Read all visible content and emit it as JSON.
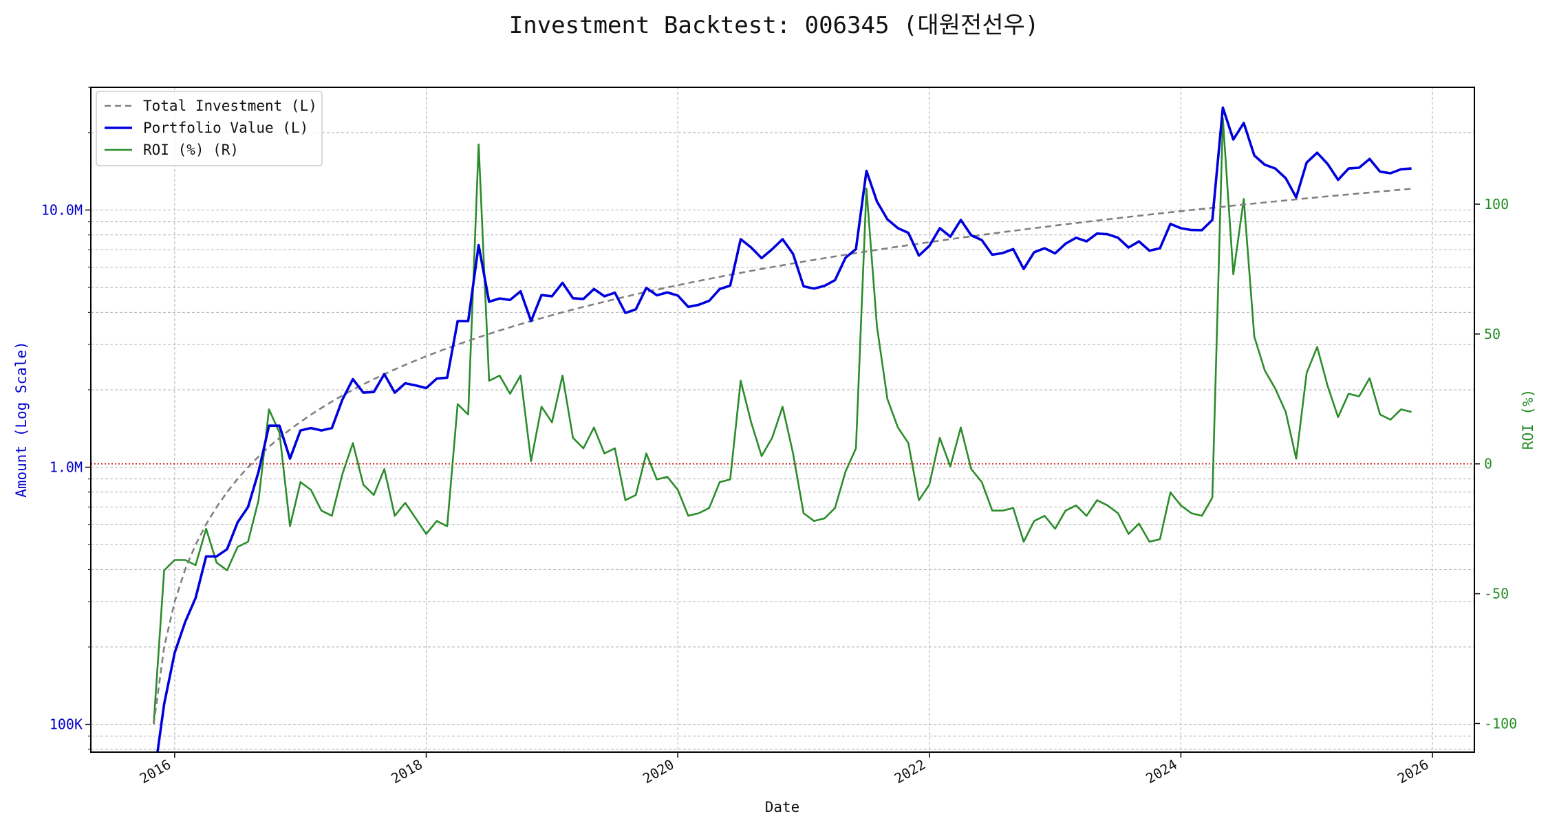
{
  "colors": {
    "total_investment": "#808080",
    "portfolio_value": "#0000dd",
    "roi": "#2a8c2a",
    "zero_line": "#cc0000",
    "left_axis": "#0000cc",
    "right_axis": "#228b22",
    "grid": "#b0b0b0"
  },
  "chart_data": {
    "type": "line",
    "title": "Investment Backtest: 006345 (대원전선우)",
    "xlabel": "Date",
    "ylabel_left": "Amount (Log Scale)",
    "ylabel_right": "ROI (%)",
    "left_scale": "log",
    "left_ylim": [
      78000,
      30000000
    ],
    "right_ylim": [
      -111,
      145
    ],
    "xlim": [
      "2015-05-01",
      "2026-05-01"
    ],
    "x_ticks": [
      "2016",
      "2018",
      "2020",
      "2022",
      "2024",
      "2026"
    ],
    "left_ticks": [
      "100K",
      "1.0M",
      "10.0M"
    ],
    "right_ticks": [
      "-100",
      "-50",
      "0",
      "50",
      "100"
    ],
    "grid": true,
    "legend_position": "top-left",
    "reference_line": {
      "axis": "right",
      "value": 0,
      "style": "dotted"
    },
    "legend": [
      {
        "label": "Total Investment (L)",
        "style": "dashed",
        "key": "total_investment"
      },
      {
        "label": "Portfolio Value (L)",
        "style": "solid",
        "key": "portfolio_value"
      },
      {
        "label": "ROI (%) (R)",
        "style": "solid",
        "key": "roi"
      }
    ],
    "x_start": "2015-11",
    "series": [
      {
        "name": "Total Investment (L)",
        "axis": "left",
        "values": [
          100000,
          200000,
          300000,
          400000,
          500000,
          600000,
          700000,
          800000,
          900000,
          1000000,
          1100000,
          1200000,
          1300000,
          1400000,
          1500000,
          1600000,
          1700000,
          1800000,
          1900000,
          2000000,
          2100000,
          2200000,
          2300000,
          2400000,
          2500000,
          2600000,
          2700000,
          2800000,
          2900000,
          3000000,
          3100000,
          3200000,
          3300000,
          3400000,
          3500000,
          3600000,
          3700000,
          3800000,
          3900000,
          4000000,
          4100000,
          4200000,
          4300000,
          4400000,
          4500000,
          4600000,
          4700000,
          4800000,
          4900000,
          5000000,
          5100000,
          5200000,
          5300000,
          5400000,
          5500000,
          5600000,
          5700000,
          5800000,
          5900000,
          6000000,
          6100000,
          6200000,
          6300000,
          6400000,
          6500000,
          6600000,
          6700000,
          6800000,
          6900000,
          7000000,
          7100000,
          7200000,
          7300000,
          7400000,
          7500000,
          7600000,
          7700000,
          7800000,
          7900000,
          8000000,
          8100000,
          8200000,
          8300000,
          8400000,
          8500000,
          8600000,
          8700000,
          8800000,
          8900000,
          9000000,
          9100000,
          9200000,
          9300000,
          9400000,
          9500000,
          9600000,
          9700000,
          9800000,
          9900000,
          10000000,
          10100000,
          10200000,
          10300000,
          10400000,
          10500000,
          10600000,
          10700000,
          10800000,
          10900000,
          11000000,
          11100000,
          11200000,
          11300000,
          11400000,
          11500000,
          11600000,
          11700000,
          11800000,
          11900000,
          12000000,
          12100000
        ]
      },
      {
        "name": "Portfolio Value (L)",
        "axis": "left",
        "values": [
          0,
          120000,
          190000,
          250000,
          310000,
          450000,
          450000,
          480000,
          610000,
          700000,
          960000,
          1450000,
          1450000,
          1080000,
          1390000,
          1420000,
          1390000,
          1420000,
          1830000,
          2200000,
          1950000,
          1960000,
          2300000,
          1950000,
          2120000,
          2080000,
          2030000,
          2210000,
          2230000,
          3700000,
          3700000,
          7300000,
          4400000,
          4530000,
          4470000,
          4830000,
          3700000,
          4670000,
          4620000,
          5210000,
          4540000,
          4510000,
          4930000,
          4620000,
          4770000,
          3980000,
          4110000,
          4980000,
          4660000,
          4780000,
          4650000,
          4200000,
          4280000,
          4440000,
          4930000,
          5080000,
          7700000,
          7150000,
          6500000,
          7040000,
          7700000,
          6750000,
          5050000,
          4950000,
          5070000,
          5340000,
          6520000,
          7050000,
          14200000,
          10800000,
          9200000,
          8500000,
          8150000,
          6650000,
          7250000,
          8500000,
          7880000,
          9150000,
          7970000,
          7640000,
          6700000,
          6800000,
          7050000,
          5900000,
          6850000,
          7100000,
          6780000,
          7400000,
          7800000,
          7550000,
          8100000,
          8050000,
          7800000,
          7150000,
          7550000,
          6950000,
          7100000,
          8830000,
          8500000,
          8360000,
          8350000,
          9150000,
          25000000,
          18800000,
          21800000,
          16300000,
          15000000,
          14500000,
          13300000,
          11200000,
          15300000,
          16700000,
          15100000,
          13100000,
          14500000,
          14600000,
          15800000,
          14100000,
          13900000,
          14400000,
          14500000
        ]
      },
      {
        "name": "ROI (%) (R)",
        "axis": "right",
        "values": [
          -100,
          -41,
          -37,
          -37,
          -39,
          -25,
          -38,
          -41,
          -32,
          -30,
          -14,
          21,
          12,
          -24,
          -7,
          -10,
          -18,
          -20,
          -4,
          8,
          -8,
          -12,
          -2,
          -20,
          -15,
          -21,
          -27,
          -22,
          -24,
          23,
          19,
          123,
          32,
          34,
          27,
          34,
          1,
          22,
          16,
          34,
          10,
          6,
          14,
          4,
          6,
          -14,
          -12,
          4,
          -6,
          -5,
          -10,
          -20,
          -19,
          -17,
          -7,
          -6,
          32,
          16,
          3,
          10,
          22,
          4,
          -19,
          -22,
          -21,
          -17,
          -3,
          6,
          106,
          53,
          25,
          14,
          8,
          -14,
          -8,
          10,
          -1,
          14,
          -2,
          -7,
          -18,
          -18,
          -17,
          -30,
          -22,
          -20,
          -25,
          -18,
          -16,
          -20,
          -14,
          -16,
          -19,
          -27,
          -23,
          -30,
          -29,
          -11,
          -16,
          -19,
          -20,
          -13,
          133,
          73,
          102,
          49,
          36,
          29,
          20,
          2,
          35,
          45,
          30,
          18,
          27,
          26,
          33,
          19,
          17,
          21,
          20
        ]
      }
    ]
  }
}
